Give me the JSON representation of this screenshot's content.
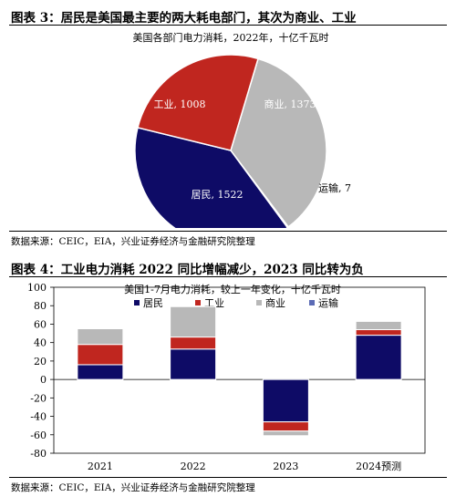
{
  "figure1": {
    "title": "图表 3：居民是美国最主要的两大耗电部门，其次为商业、工业",
    "source": "数据来源：CEIC，EIA，兴业证券经济与金融研究院整理"
  },
  "figure2": {
    "title": "图表 4：工业电力消耗 2022 同比增幅减少，2023 同比转为负",
    "source": "数据来源：CEIC，EIA，兴业证券经济与金融研究院整理"
  },
  "chart_data": [
    {
      "type": "pie",
      "title": "美国各部门电力消耗，2022年，十亿千瓦时",
      "slices": [
        {
          "name": "商业",
          "value": 1373,
          "label": "商业, 1373",
          "color": "#b8b8b8"
        },
        {
          "name": "运输",
          "value": 7,
          "label": "运输, 7",
          "color": "#5b6bb5"
        },
        {
          "name": "居民",
          "value": 1522,
          "label": "居民, 1522",
          "color": "#0e0b66"
        },
        {
          "name": "工业",
          "value": 1008,
          "label": "工业, 1008",
          "color": "#c0261f"
        }
      ]
    },
    {
      "type": "bar",
      "stacked": true,
      "title": "美国1-7月电力消耗，较上一年变化，十亿千瓦时",
      "categories": [
        "2021",
        "2022",
        "2023",
        "2024预测"
      ],
      "series": [
        {
          "name": "居民",
          "color": "#0e0b66",
          "values": [
            16,
            33,
            -46,
            48
          ]
        },
        {
          "name": "工业",
          "color": "#c0261f",
          "values": [
            22,
            13,
            -10,
            6
          ]
        },
        {
          "name": "商业",
          "color": "#b8b8b8",
          "values": [
            17,
            33,
            -5,
            9
          ]
        },
        {
          "name": "运输",
          "color": "#5b6bb5",
          "values": [
            0,
            0,
            0,
            0
          ]
        }
      ],
      "ylim": [
        -80,
        100
      ],
      "yticks": [
        -80,
        -60,
        -40,
        -20,
        0,
        20,
        40,
        60,
        80,
        100
      ],
      "legend": "top"
    }
  ]
}
